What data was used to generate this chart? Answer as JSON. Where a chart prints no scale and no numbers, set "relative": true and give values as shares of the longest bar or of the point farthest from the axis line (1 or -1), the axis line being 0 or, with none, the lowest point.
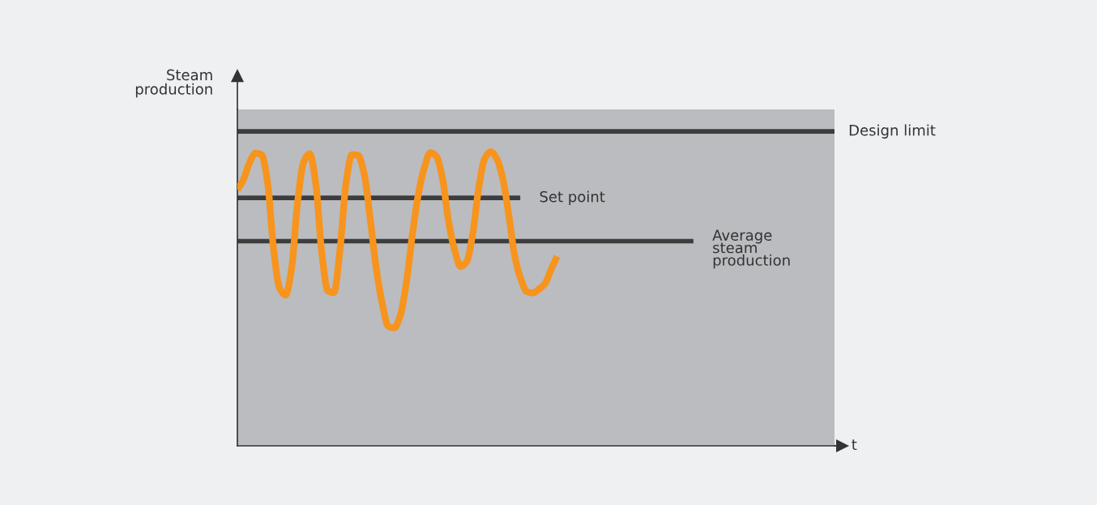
{
  "chart_data": {
    "type": "line",
    "relative": true,
    "xlabel": "t",
    "ylabel": "Steam\nproduction",
    "categories": [
      null,
      null,
      null,
      null,
      null,
      null,
      null,
      null,
      null,
      null,
      null,
      null,
      null,
      null,
      null,
      null,
      null,
      null,
      null,
      null,
      null,
      null,
      null,
      null,
      null,
      null,
      null,
      null,
      null,
      null,
      null,
      null,
      null,
      null,
      null,
      null,
      null,
      null,
      null,
      null,
      null,
      null,
      null,
      null,
      null,
      null,
      null,
      null,
      null,
      null,
      null,
      null,
      null,
      null,
      null,
      null,
      null,
      null,
      null,
      null,
      null,
      null,
      null,
      null,
      null,
      null,
      null,
      null,
      null,
      null,
      null,
      null,
      null,
      null,
      null,
      null,
      null,
      null,
      null,
      null,
      null,
      null,
      null,
      null,
      null,
      null,
      null,
      null,
      null,
      null,
      null,
      null,
      null,
      null,
      null,
      null,
      null,
      null,
      null,
      null
    ],
    "series": [
      {
        "color": "#f7941d",
        "values": [
          0.871,
          0.905,
          0.962,
          0.995,
          0.99,
          0.896,
          0.669,
          0.536,
          0.513,
          0.605,
          0.832,
          0.965,
          0.993,
          0.891,
          0.654,
          0.527,
          0.521,
          0.664,
          0.891,
          0.99,
          0.988,
          0.927,
          0.776,
          0.607,
          0.486,
          0.407,
          0.401,
          0.443,
          0.552,
          0.716,
          0.855,
          0.946,
          0.997,
          0.984,
          0.91,
          0.765,
          0.667,
          0.61,
          0.626,
          0.718,
          0.875,
          0.976,
          1.0,
          0.976,
          0.909,
          0.784,
          0.644,
          0.567,
          0.524,
          0.52,
          0.533,
          0.552,
          0.599,
          0.644,
          null,
          null,
          null,
          null,
          null,
          null,
          null,
          null,
          null,
          null,
          null,
          null,
          null,
          null,
          null,
          null,
          null,
          null,
          null,
          null,
          null,
          null,
          null,
          null,
          null,
          null,
          null,
          null,
          null,
          null,
          null,
          null,
          null,
          null,
          null,
          null,
          null,
          null,
          null,
          null,
          null,
          null,
          null,
          null,
          null,
          null
        ]
      }
    ],
    "ref_lines": [
      {
        "axis": "y",
        "value": 1.069,
        "label": "Design limit",
        "color": "#3d3d3d"
      },
      {
        "axis": "y",
        "value": 0.843,
        "label": "Set point",
        "color": "#3d3d3d"
      },
      {
        "axis": "y",
        "value": 0.696,
        "label": "Average\nsteam\nproduction",
        "color": "#3d3d3d"
      }
    ]
  }
}
